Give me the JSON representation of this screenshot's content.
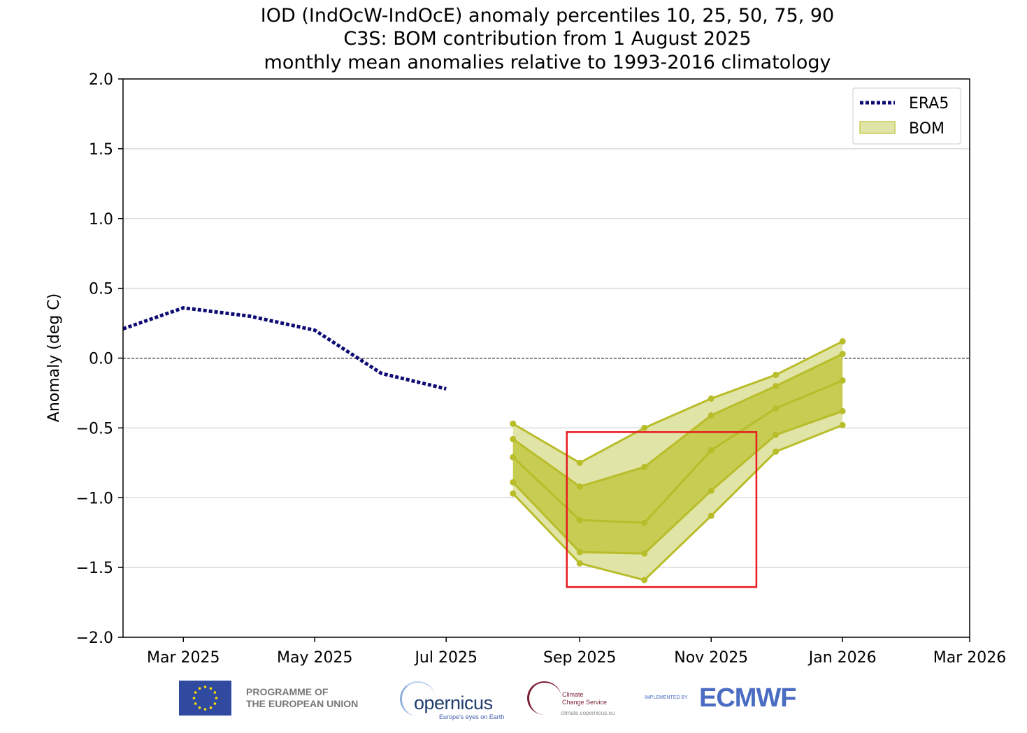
{
  "chart_data": {
    "type": "line",
    "title": "IOD (IndOcW-IndOcE) anomaly percentiles 10, 25, 50, 75, 90",
    "subtitle_lines": [
      "C3S: BOM contribution from 1 August 2025",
      "monthly mean anomalies relative to 1993-2016 climatology"
    ],
    "xlabel": "",
    "ylabel": "Anomaly (deg C)",
    "xlim": [
      "2025-02-01",
      "2026-03-01"
    ],
    "ylim": [
      -2.0,
      2.0
    ],
    "yticks": [
      "2.0",
      "1.5",
      "1.0",
      "0.5",
      "0.0",
      "−0.5",
      "−1.0",
      "−1.5",
      "−2.0"
    ],
    "ytick_values": [
      2.0,
      1.5,
      1.0,
      0.5,
      0.0,
      -0.5,
      -1.0,
      -1.5,
      -2.0
    ],
    "xticks": [
      "Mar 2025",
      "May 2025",
      "Jul 2025",
      "Sep 2025",
      "Nov 2025",
      "Jan 2026",
      "Mar 2026"
    ],
    "xtick_dates": [
      "2025-03-01",
      "2025-05-01",
      "2025-07-01",
      "2025-09-01",
      "2025-11-01",
      "2026-01-01",
      "2026-03-01"
    ],
    "grid": "horizontal",
    "zero_line": true,
    "legend_placement": "top-right",
    "series": [
      {
        "name": "ERA5",
        "style": "dotted",
        "color": "#0d0a74",
        "x": [
          "2025-02-01",
          "2025-03-01",
          "2025-04-01",
          "2025-05-01",
          "2025-06-01",
          "2025-07-01"
        ],
        "y": [
          0.21,
          0.36,
          0.3,
          0.2,
          -0.11,
          -0.22
        ]
      },
      {
        "name": "BOM",
        "style": "percentile-band",
        "color": "#b8bd2a",
        "fill_outer": "#e1e4a7",
        "fill_inner": "#c7cc53",
        "x": [
          "2025-08-01",
          "2025-09-01",
          "2025-10-01",
          "2025-11-01",
          "2025-12-01",
          "2026-01-01"
        ],
        "p90": [
          -0.47,
          -0.75,
          -0.5,
          -0.29,
          -0.12,
          0.12
        ],
        "p75": [
          -0.58,
          -0.92,
          -0.78,
          -0.41,
          -0.2,
          0.03
        ],
        "p50": [
          -0.71,
          -1.16,
          -1.18,
          -0.66,
          -0.36,
          -0.16
        ],
        "p25": [
          -0.89,
          -1.39,
          -1.4,
          -0.95,
          -0.55,
          -0.38
        ],
        "p10": [
          -0.97,
          -1.47,
          -1.59,
          -1.13,
          -0.67,
          -0.48
        ]
      }
    ],
    "annotation": {
      "type": "rectangle",
      "color": "#e8191f",
      "x": [
        "2025-08-26",
        "2025-11-22"
      ],
      "y": [
        -0.53,
        -1.64
      ]
    }
  },
  "footer": {
    "eu_line1": "PROGRAMME OF",
    "eu_line2": "THE EUROPEAN UNION",
    "copernicus": "opernicus",
    "copernicus_tagline": "Europe's eyes on Earth",
    "c3s_line1": "Climate",
    "c3s_line2": "Change Service",
    "c3s_url": "climate.copernicus.eu",
    "implemented_by": "IMPLEMENTED BY",
    "ecmwf": "ECMWF"
  }
}
